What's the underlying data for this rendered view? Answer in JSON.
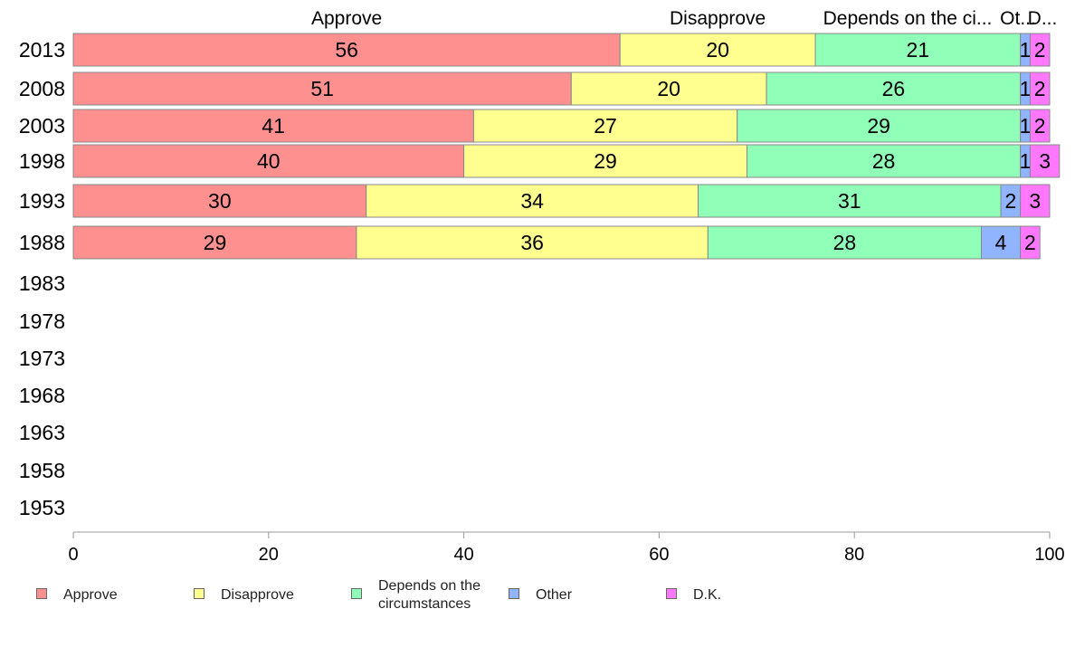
{
  "chart_data": {
    "type": "bar",
    "orientation": "horizontal",
    "stacked": true,
    "categories": [
      "2013",
      "2008",
      "2003",
      "1998",
      "1993",
      "1988",
      "1983",
      "1978",
      "1973",
      "1968",
      "1963",
      "1958",
      "1953"
    ],
    "series": [
      {
        "name": "Approve",
        "color": "#ff9090",
        "values": [
          56,
          51,
          41,
          40,
          30,
          29,
          null,
          null,
          null,
          null,
          null,
          null,
          null
        ]
      },
      {
        "name": "Disapprove",
        "color": "#ffff90",
        "values": [
          20,
          20,
          27,
          29,
          34,
          36,
          null,
          null,
          null,
          null,
          null,
          null,
          null
        ]
      },
      {
        "name": "Depends on the circumstances",
        "color": "#90ffb8",
        "values": [
          21,
          26,
          29,
          28,
          31,
          28,
          null,
          null,
          null,
          null,
          null,
          null,
          null
        ]
      },
      {
        "name": "Other",
        "color": "#90b4ff",
        "values": [
          1,
          1,
          1,
          1,
          2,
          4,
          null,
          null,
          null,
          null,
          null,
          null,
          null
        ]
      },
      {
        "name": "D.K.",
        "color": "#ff78ff",
        "values": [
          2,
          2,
          2,
          3,
          3,
          2,
          null,
          null,
          null,
          null,
          null,
          null,
          null
        ]
      }
    ],
    "top_labels": [
      "Approve",
      "Disapprove",
      "Depends on the ci...",
      "Ot...",
      "D..."
    ],
    "x_ticks": [
      "0",
      "20",
      "40",
      "60",
      "80",
      "100"
    ],
    "xlim": [
      0,
      100
    ],
    "grid": false,
    "legend_position": "bottom"
  }
}
